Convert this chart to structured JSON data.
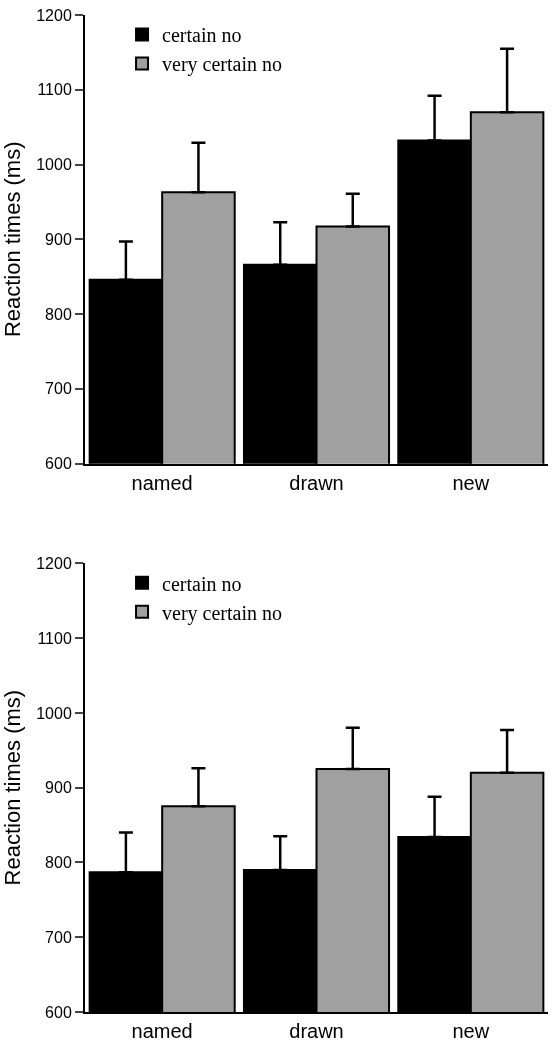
{
  "chart_data": [
    {
      "type": "bar",
      "categories": [
        "named",
        "drawn",
        "new"
      ],
      "ylabel": "Reaction times (ms)",
      "ylim": [
        600,
        1200
      ],
      "yticks": [
        600,
        700,
        800,
        900,
        1000,
        1100,
        1200
      ],
      "legend": "top left",
      "series": [
        {
          "name": "certain no",
          "color": "#000000",
          "values": [
            846,
            866,
            1032
          ],
          "errors": [
            [
              846,
              897
            ],
            [
              866,
              923
            ],
            [
              1032,
              1092
            ]
          ]
        },
        {
          "name": "very certain no",
          "color": "#a0a0a0",
          "values": [
            963,
            917,
            1070
          ],
          "errors": [
            [
              963,
              1029
            ],
            [
              917,
              961
            ],
            [
              1070,
              1155
            ]
          ]
        }
      ]
    },
    {
      "type": "bar",
      "categories": [
        "named",
        "drawn",
        "new"
      ],
      "ylabel": "Reaction times (ms)",
      "ylim": [
        600,
        1200
      ],
      "yticks": [
        600,
        700,
        800,
        900,
        1000,
        1100,
        1200
      ],
      "legend": "top left",
      "series": [
        {
          "name": "certain no",
          "color": "#000000",
          "values": [
            787,
            790,
            834
          ],
          "errors": [
            [
              787,
              840
            ],
            [
              790,
              835
            ],
            [
              834,
              888
            ]
          ]
        },
        {
          "name": "very certain no",
          "color": "#a0a0a0",
          "values": [
            875,
            925,
            920
          ],
          "errors": [
            [
              875,
              926
            ],
            [
              925,
              980
            ],
            [
              920,
              977
            ]
          ]
        }
      ]
    }
  ]
}
